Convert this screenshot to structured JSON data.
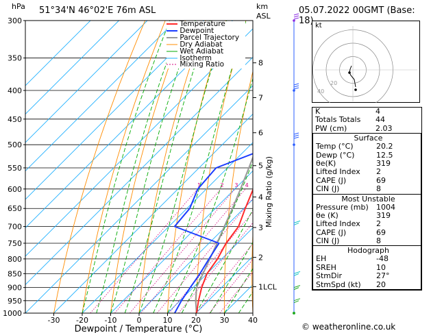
{
  "header": {
    "station": "51°34'N  46°02'E  76m  ASL",
    "date": "05.07.2022  00GMT  (Base: 18)",
    "hpa_label": "hPa",
    "km_label": "km",
    "asl_label": "ASL"
  },
  "chart_data": {
    "type": "skew-t",
    "xlabel": "Dewpoint / Temperature (°C)",
    "ylabel_right": "Mixing Ratio (g/kg)",
    "x_ticks": [
      -30,
      -20,
      -10,
      0,
      10,
      20,
      30,
      40
    ],
    "pressure_levels": [
      300,
      350,
      400,
      450,
      500,
      550,
      600,
      650,
      700,
      750,
      800,
      850,
      900,
      950,
      1000
    ],
    "km_ticks": [
      {
        "km": "8",
        "p": 357
      },
      {
        "km": "7",
        "p": 412
      },
      {
        "km": "6",
        "p": 476
      },
      {
        "km": "5",
        "p": 545
      },
      {
        "km": "4",
        "p": 620
      },
      {
        "km": "3",
        "p": 703
      },
      {
        "km": "2",
        "p": 795
      },
      {
        "km": "1LCL",
        "p": 897
      }
    ],
    "mixing_ratio_labels": [
      "1",
      "2",
      "3",
      "4",
      "6",
      "8",
      "10",
      "15",
      "20",
      "25"
    ],
    "legend": [
      "Temperature",
      "Dewpoint",
      "Parcel Trajectory",
      "Dry Adiabat",
      "Wet Adiabat",
      "Isotherm",
      "Mixing Ratio"
    ],
    "temperature": [
      {
        "p": 1000,
        "t": 20.2
      },
      {
        "p": 950,
        "t": 16.5
      },
      {
        "p": 900,
        "t": 13.0
      },
      {
        "p": 850,
        "t": 10.0
      },
      {
        "p": 800,
        "t": 8.5
      },
      {
        "p": 750,
        "t": 6.0
      },
      {
        "p": 700,
        "t": 4.5
      },
      {
        "p": 650,
        "t": 0.5
      },
      {
        "p": 600,
        "t": -3.5
      },
      {
        "p": 550,
        "t": -8.5
      },
      {
        "p": 500,
        "t": -14.0
      },
      {
        "p": 450,
        "t": -20.0
      },
      {
        "p": 400,
        "t": -27.0
      },
      {
        "p": 350,
        "t": -35.0
      },
      {
        "p": 300,
        "t": -44.0
      }
    ],
    "dewpoint": [
      {
        "p": 1000,
        "t": 12.5
      },
      {
        "p": 950,
        "t": 10.5
      },
      {
        "p": 900,
        "t": 9.0
      },
      {
        "p": 850,
        "t": 7.5
      },
      {
        "p": 800,
        "t": 5.5
      },
      {
        "p": 750,
        "t": 3.5
      },
      {
        "p": 700,
        "t": -18.0
      },
      {
        "p": 650,
        "t": -19.0
      },
      {
        "p": 600,
        "t": -23.0
      },
      {
        "p": 550,
        "t": -24.0
      },
      {
        "p": 500,
        "t": -11.0
      },
      {
        "p": 450,
        "t": -20.0
      },
      {
        "p": 400,
        "t": -29.0
      },
      {
        "p": 350,
        "t": -40.0
      },
      {
        "p": 300,
        "t": -52.0
      }
    ],
    "parcel": [
      {
        "p": 1000,
        "t": 20.2
      },
      {
        "p": 950,
        "t": 15.5
      },
      {
        "p": 900,
        "t": 11.2
      },
      {
        "p": 850,
        "t": 8.6
      },
      {
        "p": 800,
        "t": 5.8
      },
      {
        "p": 750,
        "t": 2.8
      },
      {
        "p": 700,
        "t": -0.5
      },
      {
        "p": 650,
        "t": -4.0
      },
      {
        "p": 600,
        "t": -8.0
      },
      {
        "p": 550,
        "t": -12.5
      },
      {
        "p": 500,
        "t": -17.5
      },
      {
        "p": 450,
        "t": -23.5
      },
      {
        "p": 400,
        "t": -30.5
      },
      {
        "p": 350,
        "t": -38.5
      },
      {
        "p": 300,
        "t": -47.5
      }
    ],
    "colors": {
      "temperature": "#ff2a2a",
      "dewpoint": "#1a3cff",
      "parcel": "#999999",
      "dry_adiabat": "#ff8c00",
      "wet_adiabat": "#00aa00",
      "isotherm": "#1fb0ff",
      "mixing_ratio": "#d6007f"
    }
  },
  "indices": {
    "rows": [
      {
        "label": "K",
        "value": "4"
      },
      {
        "label": "Totals Totals",
        "value": "44"
      },
      {
        "label": "PW (cm)",
        "value": "2.03"
      }
    ]
  },
  "surface": {
    "title": "Surface",
    "rows": [
      {
        "label": "Temp (°C)",
        "value": "20.2"
      },
      {
        "label": "Dewp (°C)",
        "value": "12.5"
      },
      {
        "label": "θe(K)",
        "value": "319"
      },
      {
        "label": "Lifted Index",
        "value": "2"
      },
      {
        "label": "CAPE (J)",
        "value": "69"
      },
      {
        "label": "CIN (J)",
        "value": "8"
      }
    ]
  },
  "unstable": {
    "title": "Most Unstable",
    "rows": [
      {
        "label": "Pressure (mb)",
        "value": "1004"
      },
      {
        "label": "θe (K)",
        "value": "319"
      },
      {
        "label": "Lifted Index",
        "value": "2"
      },
      {
        "label": "CAPE (J)",
        "value": "69"
      },
      {
        "label": "CIN (J)",
        "value": "8"
      }
    ]
  },
  "hodograph": {
    "title": "Hodograph",
    "label": "kt",
    "ring_labels": [
      "20",
      "40"
    ],
    "rows": [
      {
        "label": "EH",
        "value": "-48"
      },
      {
        "label": "SREH",
        "value": "10"
      },
      {
        "label": "StmDir",
        "value": "27°"
      },
      {
        "label": "StmSpd (kt)",
        "value": "20"
      }
    ]
  },
  "footer": "© weatheronline.co.uk"
}
